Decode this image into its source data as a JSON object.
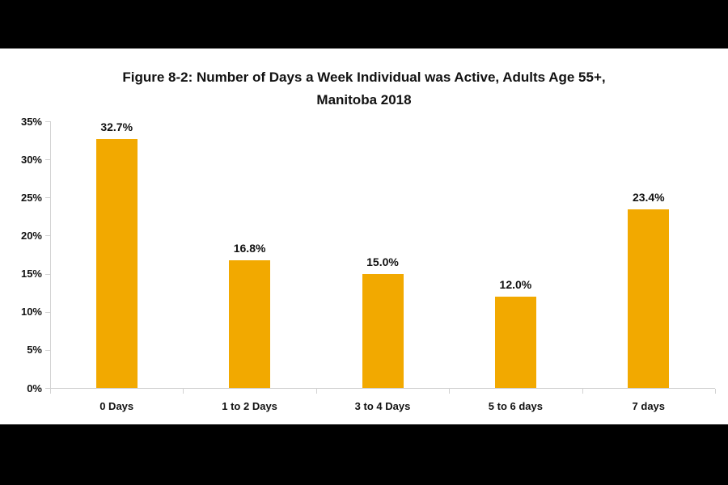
{
  "page": {
    "letterbox_color": "#000000",
    "card_color": "#ffffff"
  },
  "chart_data": {
    "type": "bar",
    "title": "Figure 8-2: Number of Days a Week Individual was Active, Adults Age 55+, Manitoba 2018",
    "title_line1": "Figure 8-2: Number of Days a Week Individual was Active, Adults Age 55+,",
    "title_line2": "Manitoba 2018",
    "categories": [
      "0 Days",
      "1 to 2 Days",
      "3 to 4 Days",
      "5 to 6 days",
      "7 days"
    ],
    "values": [
      32.7,
      16.8,
      15.0,
      12.0,
      23.4
    ],
    "value_labels": [
      "32.7%",
      "16.8%",
      "15.0%",
      "12.0%",
      "23.4%"
    ],
    "xlabel": "",
    "ylabel": "",
    "ylim": [
      0,
      35
    ],
    "ytick_step": 5,
    "ytick_labels": [
      "0%",
      "5%",
      "10%",
      "15%",
      "20%",
      "25%",
      "30%",
      "35%"
    ],
    "grid": false,
    "legend_position": "none",
    "bar_color": "#F2A900",
    "axis_color": "#D2D2D2",
    "text_color": "#111111"
  }
}
